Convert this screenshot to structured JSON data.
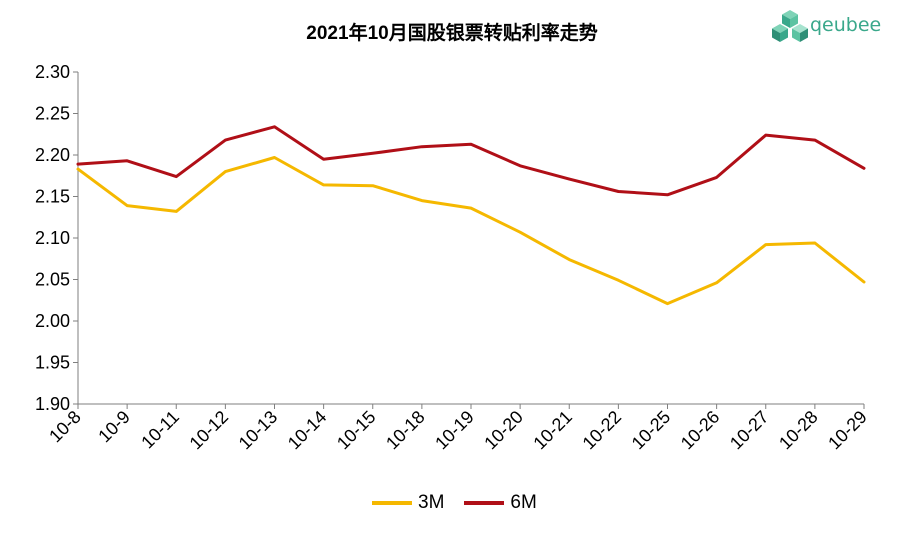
{
  "logo": {
    "text": "qeubee"
  },
  "chart_data": {
    "type": "line",
    "title": "2021年10月国股银票转贴利率走势",
    "categories": [
      "10-8",
      "10-9",
      "10-11",
      "10-12",
      "10-13",
      "10-14",
      "10-15",
      "10-18",
      "10-19",
      "10-20",
      "10-21",
      "10-22",
      "10-25",
      "10-26",
      "10-27",
      "10-28",
      "10-29"
    ],
    "series": [
      {
        "name": "3M",
        "color": "#F5B800",
        "values": [
          2.183,
          2.139,
          2.132,
          2.18,
          2.197,
          2.164,
          2.163,
          2.145,
          2.136,
          2.107,
          2.074,
          2.049,
          2.021,
          2.046,
          2.092,
          2.094,
          2.047
        ]
      },
      {
        "name": "6M",
        "color": "#B00F17",
        "values": [
          2.189,
          2.193,
          2.174,
          2.218,
          2.234,
          2.195,
          2.202,
          2.21,
          2.213,
          2.187,
          2.171,
          2.156,
          2.152,
          2.173,
          2.224,
          2.218,
          2.184
        ]
      }
    ],
    "ylim": [
      1.9,
      2.3
    ],
    "yticks": [
      "1.90",
      "1.95",
      "2.00",
      "2.05",
      "2.10",
      "2.15",
      "2.20",
      "2.25",
      "2.30"
    ],
    "xlabel": "",
    "ylabel": "",
    "grid": false,
    "legend": "bottom"
  }
}
